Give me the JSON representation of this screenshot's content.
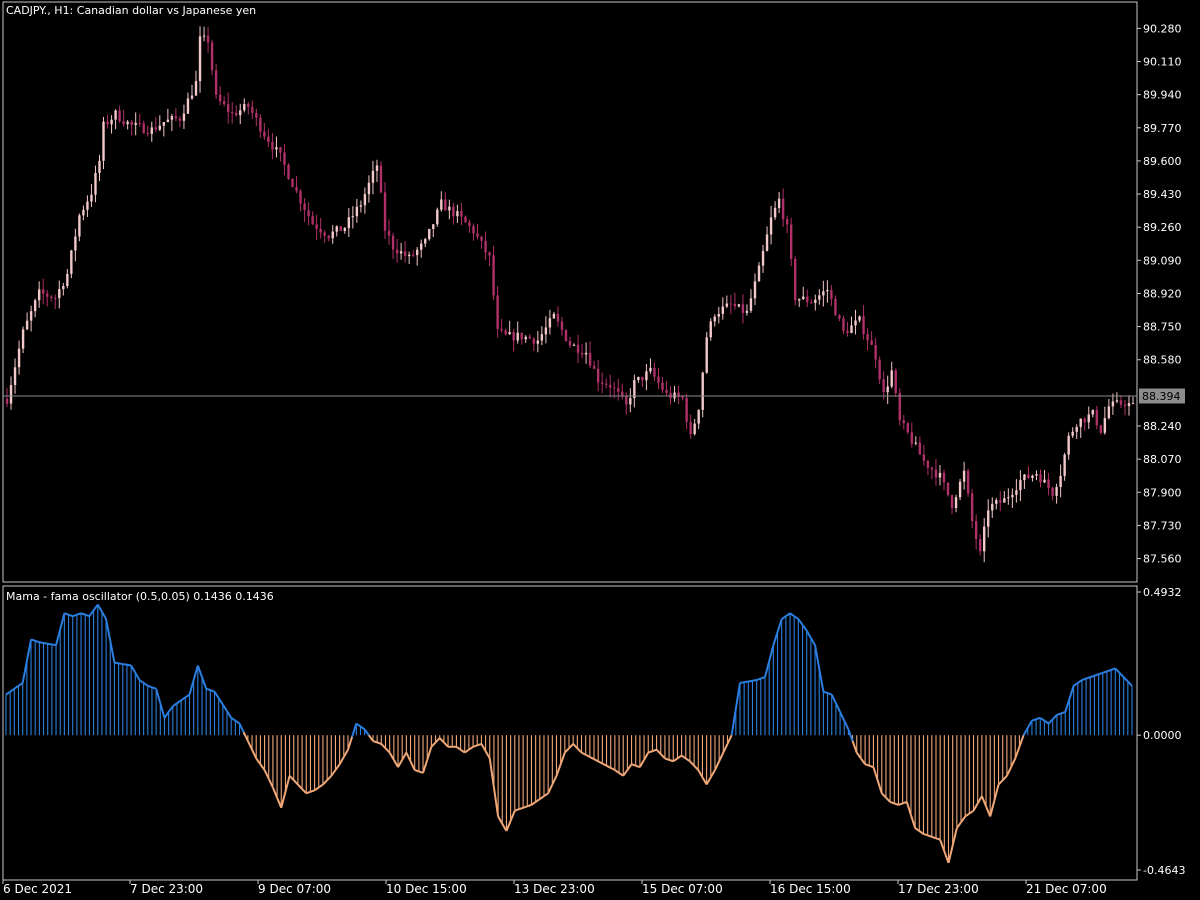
{
  "chart_data": [
    {
      "type": "candlestick",
      "title": "CADJPY., H1:  Canadian dollar vs Japanese yen",
      "y_ticks": [
        "90.280",
        "90.110",
        "89.940",
        "89.770",
        "89.600",
        "89.430",
        "89.260",
        "89.090",
        "88.920",
        "88.750",
        "88.580",
        "88.240",
        "88.070",
        "87.900",
        "87.730",
        "87.560"
      ],
      "ylim": [
        87.45,
        90.4
      ],
      "current_price": "88.394",
      "close_path": [
        [
          0,
          88.38
        ],
        [
          4,
          88.72
        ],
        [
          8,
          88.92
        ],
        [
          12,
          88.9
        ],
        [
          15,
          89.02
        ],
        [
          18,
          89.32
        ],
        [
          21,
          89.44
        ],
        [
          23,
          89.6
        ],
        [
          24,
          89.78
        ],
        [
          27,
          89.84
        ],
        [
          31,
          89.78
        ],
        [
          36,
          89.76
        ],
        [
          39,
          89.8
        ],
        [
          43,
          89.82
        ],
        [
          47,
          90.0
        ],
        [
          48,
          90.22
        ],
        [
          50,
          90.22
        ],
        [
          52,
          89.92
        ],
        [
          56,
          89.84
        ],
        [
          60,
          89.88
        ],
        [
          64,
          89.74
        ],
        [
          68,
          89.62
        ],
        [
          72,
          89.44
        ],
        [
          76,
          89.28
        ],
        [
          80,
          89.22
        ],
        [
          84,
          89.26
        ],
        [
          88,
          89.38
        ],
        [
          92,
          89.58
        ],
        [
          94,
          89.25
        ],
        [
          96,
          89.16
        ],
        [
          100,
          89.1
        ],
        [
          104,
          89.18
        ],
        [
          108,
          89.38
        ],
        [
          112,
          89.32
        ],
        [
          116,
          89.24
        ],
        [
          120,
          89.1
        ],
        [
          122,
          88.72
        ],
        [
          124,
          88.7
        ],
        [
          128,
          88.7
        ],
        [
          132,
          88.68
        ],
        [
          136,
          88.8
        ],
        [
          140,
          88.66
        ],
        [
          144,
          88.62
        ],
        [
          147,
          88.48
        ],
        [
          150,
          88.45
        ],
        [
          152,
          88.4
        ],
        [
          154,
          88.34
        ],
        [
          156,
          88.46
        ],
        [
          160,
          88.52
        ],
        [
          164,
          88.4
        ],
        [
          168,
          88.38
        ],
        [
          170,
          88.18
        ],
        [
          172,
          88.34
        ],
        [
          174,
          88.7
        ],
        [
          176,
          88.82
        ],
        [
          180,
          88.86
        ],
        [
          184,
          88.82
        ],
        [
          187,
          89.04
        ],
        [
          190,
          89.3
        ],
        [
          192,
          89.4
        ],
        [
          194,
          89.25
        ],
        [
          196,
          88.9
        ],
        [
          200,
          88.88
        ],
        [
          204,
          88.94
        ],
        [
          208,
          88.72
        ],
        [
          212,
          88.78
        ],
        [
          216,
          88.6
        ],
        [
          218,
          88.4
        ],
        [
          220,
          88.52
        ],
        [
          222,
          88.26
        ],
        [
          224,
          88.2
        ],
        [
          228,
          88.06
        ],
        [
          232,
          87.98
        ],
        [
          235,
          87.84
        ],
        [
          238,
          88.0
        ],
        [
          240,
          87.75
        ],
        [
          242,
          87.58
        ],
        [
          244,
          87.82
        ],
        [
          248,
          87.86
        ],
        [
          252,
          87.96
        ],
        [
          256,
          88.0
        ],
        [
          260,
          87.9
        ],
        [
          262,
          88.0
        ],
        [
          264,
          88.18
        ],
        [
          266,
          88.26
        ],
        [
          270,
          88.3
        ],
        [
          272,
          88.22
        ],
        [
          274,
          88.34
        ],
        [
          278,
          88.36
        ],
        [
          280,
          88.34
        ]
      ]
    },
    {
      "type": "bar",
      "title": "Mama - fama oscillator (0.5,0.05) 0.1436 0.1436",
      "y_ticks": [
        "0.4932",
        "0.0000",
        "-0.4643"
      ],
      "ylim": [
        -0.4643,
        0.4932
      ],
      "colors": {
        "positive": "#2a7fe0",
        "negative": "#f0a878"
      },
      "values_path": [
        [
          0,
          0.14
        ],
        [
          4,
          0.18
        ],
        [
          6,
          0.33
        ],
        [
          8,
          0.32
        ],
        [
          12,
          0.31
        ],
        [
          14,
          0.42
        ],
        [
          16,
          0.41
        ],
        [
          18,
          0.42
        ],
        [
          20,
          0.41
        ],
        [
          22,
          0.45
        ],
        [
          24,
          0.4
        ],
        [
          26,
          0.25
        ],
        [
          30,
          0.24
        ],
        [
          32,
          0.19
        ],
        [
          34,
          0.17
        ],
        [
          36,
          0.16
        ],
        [
          38,
          0.06
        ],
        [
          40,
          0.1
        ],
        [
          42,
          0.12
        ],
        [
          44,
          0.14
        ],
        [
          46,
          0.24
        ],
        [
          48,
          0.16
        ],
        [
          50,
          0.15
        ],
        [
          54,
          0.06
        ],
        [
          56,
          0.04
        ],
        [
          58,
          -0.02
        ],
        [
          60,
          -0.08
        ],
        [
          62,
          -0.12
        ],
        [
          64,
          -0.18
        ],
        [
          66,
          -0.25
        ],
        [
          68,
          -0.14
        ],
        [
          70,
          -0.17
        ],
        [
          72,
          -0.2
        ],
        [
          74,
          -0.19
        ],
        [
          76,
          -0.17
        ],
        [
          78,
          -0.14
        ],
        [
          80,
          -0.1
        ],
        [
          82,
          -0.05
        ],
        [
          84,
          0.04
        ],
        [
          86,
          0.02
        ],
        [
          88,
          -0.02
        ],
        [
          90,
          -0.03
        ],
        [
          92,
          -0.06
        ],
        [
          94,
          -0.11
        ],
        [
          96,
          -0.06
        ],
        [
          98,
          -0.12
        ],
        [
          100,
          -0.13
        ],
        [
          102,
          -0.04
        ],
        [
          104,
          -0.01
        ],
        [
          106,
          -0.04
        ],
        [
          108,
          -0.04
        ],
        [
          110,
          -0.06
        ],
        [
          112,
          -0.04
        ],
        [
          114,
          -0.03
        ],
        [
          116,
          -0.08
        ],
        [
          118,
          -0.28
        ],
        [
          120,
          -0.33
        ],
        [
          122,
          -0.26
        ],
        [
          126,
          -0.24
        ],
        [
          130,
          -0.2
        ],
        [
          132,
          -0.14
        ],
        [
          134,
          -0.06
        ],
        [
          136,
          -0.03
        ],
        [
          138,
          -0.06
        ],
        [
          142,
          -0.09
        ],
        [
          146,
          -0.12
        ],
        [
          148,
          -0.14
        ],
        [
          150,
          -0.1
        ],
        [
          152,
          -0.11
        ],
        [
          154,
          -0.06
        ],
        [
          156,
          -0.05
        ],
        [
          158,
          -0.08
        ],
        [
          160,
          -0.09
        ],
        [
          162,
          -0.07
        ],
        [
          164,
          -0.09
        ],
        [
          166,
          -0.12
        ],
        [
          168,
          -0.17
        ],
        [
          170,
          -0.12
        ],
        [
          172,
          -0.06
        ],
        [
          174,
          0.0
        ],
        [
          176,
          0.18
        ],
        [
          180,
          0.19
        ],
        [
          182,
          0.2
        ],
        [
          184,
          0.31
        ],
        [
          186,
          0.4
        ],
        [
          188,
          0.42
        ],
        [
          190,
          0.4
        ],
        [
          192,
          0.36
        ],
        [
          194,
          0.31
        ],
        [
          196,
          0.15
        ],
        [
          198,
          0.14
        ],
        [
          200,
          0.08
        ],
        [
          202,
          0.02
        ],
        [
          204,
          -0.06
        ],
        [
          206,
          -0.1
        ],
        [
          208,
          -0.11
        ],
        [
          210,
          -0.2
        ],
        [
          212,
          -0.23
        ],
        [
          214,
          -0.24
        ],
        [
          216,
          -0.23
        ],
        [
          218,
          -0.32
        ],
        [
          220,
          -0.34
        ],
        [
          222,
          -0.35
        ],
        [
          224,
          -0.36
        ],
        [
          226,
          -0.44
        ],
        [
          228,
          -0.32
        ],
        [
          230,
          -0.28
        ],
        [
          232,
          -0.26
        ],
        [
          234,
          -0.21
        ],
        [
          236,
          -0.28
        ],
        [
          238,
          -0.17
        ],
        [
          240,
          -0.14
        ],
        [
          242,
          -0.08
        ],
        [
          244,
          0.0
        ],
        [
          246,
          0.05
        ],
        [
          248,
          0.06
        ],
        [
          250,
          0.04
        ],
        [
          252,
          0.07
        ],
        [
          254,
          0.08
        ],
        [
          256,
          0.17
        ],
        [
          258,
          0.19
        ],
        [
          262,
          0.21
        ],
        [
          264,
          0.22
        ],
        [
          266,
          0.23
        ],
        [
          268,
          0.2
        ],
        [
          270,
          0.17
        ]
      ]
    }
  ],
  "time_axis": [
    "6 Dec 2021",
    "7 Dec 23:00",
    "9 Dec 07:00",
    "10 Dec 15:00",
    "13 Dec 23:00",
    "15 Dec 07:00",
    "16 Dec 15:00",
    "17 Dec 23:00",
    "21 Dec 07:00"
  ]
}
